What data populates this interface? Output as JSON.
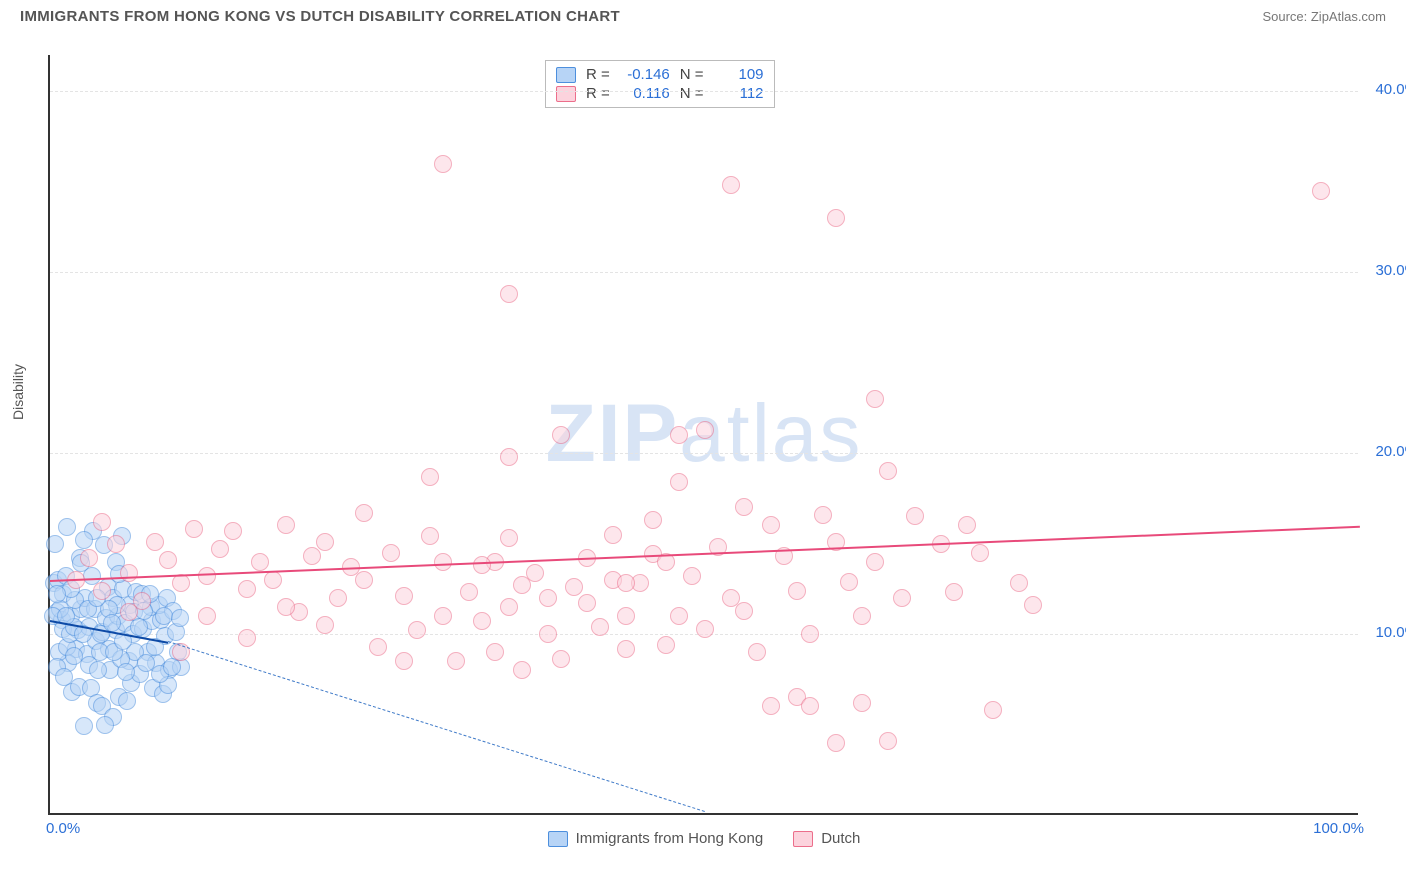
{
  "title": "IMMIGRANTS FROM HONG KONG VS DUTCH DISABILITY CORRELATION CHART",
  "source_prefix": "Source: ",
  "source_name": "ZipAtlas.com",
  "ylabel": "Disability",
  "watermark": "ZIPatlas",
  "chart": {
    "type": "scatter",
    "xlim": [
      0,
      100
    ],
    "ylim": [
      0,
      42
    ],
    "yticks": [
      10,
      20,
      30,
      40
    ],
    "ytick_labels": [
      "10.0%",
      "20.0%",
      "30.0%",
      "40.0%"
    ],
    "xtick_labels": {
      "left": "0.0%",
      "right": "100.0%"
    },
    "grid_color": "#e4e4e4",
    "axis_color": "#333333",
    "label_color": "#2b6fd6",
    "marker_radius": 9,
    "marker_border_width": 1.5,
    "trend_line_width": 2
  },
  "series": [
    {
      "name": "Immigrants from Hong Kong",
      "fill": "#b7d4f6",
      "stroke": "#4d8fdd",
      "fill_opacity": 0.55,
      "R": "-0.146",
      "N": "109",
      "trend": {
        "x1": 0,
        "y1": 10.8,
        "x2": 9,
        "y2": 9.6,
        "color": "#0d4aa6"
      },
      "trend_dashed": {
        "x1": 9,
        "y1": 9.6,
        "x2": 50,
        "y2": 0.2,
        "color": "#3f7ac8"
      },
      "points": [
        [
          0.3,
          12.8
        ],
        [
          0.6,
          13.0
        ],
        [
          0.5,
          11.2
        ],
        [
          1.0,
          12.2
        ],
        [
          0.9,
          10.8
        ],
        [
          1.2,
          13.2
        ],
        [
          1.6,
          11.0
        ],
        [
          2.1,
          10.2
        ],
        [
          2.4,
          11.4
        ],
        [
          2.0,
          9.2
        ],
        [
          3.0,
          10.4
        ],
        [
          2.7,
          12.0
        ],
        [
          1.4,
          8.4
        ],
        [
          2.8,
          8.9
        ],
        [
          3.5,
          9.6
        ],
        [
          3.4,
          11.4
        ],
        [
          4.0,
          10.1
        ],
        [
          4.3,
          10.9
        ],
        [
          4.5,
          9.2
        ],
        [
          5.0,
          10.2
        ],
        [
          5.2,
          11.0
        ],
        [
          5.7,
          10.6
        ],
        [
          6.3,
          10.0
        ],
        [
          6.0,
          8.5
        ],
        [
          1.7,
          6.8
        ],
        [
          2.2,
          7.1
        ],
        [
          3.1,
          7.0
        ],
        [
          3.6,
          6.2
        ],
        [
          4.0,
          6.0
        ],
        [
          4.8,
          5.4
        ],
        [
          2.6,
          4.9
        ],
        [
          5.3,
          6.5
        ],
        [
          5.9,
          6.3
        ],
        [
          6.2,
          7.3
        ],
        [
          6.9,
          7.8
        ],
        [
          7.1,
          10.3
        ],
        [
          7.5,
          9.0
        ],
        [
          7.8,
          10.7
        ],
        [
          8.1,
          8.4
        ],
        [
          8.5,
          10.8
        ],
        [
          8.8,
          9.9
        ],
        [
          9.1,
          8.0
        ],
        [
          9.6,
          10.1
        ],
        [
          10.0,
          8.2
        ],
        [
          3.3,
          15.7
        ],
        [
          4.1,
          14.9
        ],
        [
          5.0,
          14.0
        ],
        [
          0.7,
          9.0
        ],
        [
          0.5,
          8.2
        ],
        [
          1.1,
          7.6
        ],
        [
          1.9,
          11.9
        ],
        [
          3.2,
          13.2
        ],
        [
          4.4,
          12.6
        ],
        [
          4.8,
          12.0
        ],
        [
          5.6,
          12.5
        ],
        [
          6.1,
          11.6
        ],
        [
          6.6,
          12.3
        ],
        [
          6.5,
          9.0
        ],
        [
          7.0,
          12.2
        ],
        [
          7.3,
          8.4
        ],
        [
          7.7,
          11.5
        ],
        [
          7.9,
          7.0
        ],
        [
          8.3,
          11.6
        ],
        [
          8.6,
          6.7
        ],
        [
          8.9,
          12.0
        ],
        [
          9.0,
          7.2
        ],
        [
          9.4,
          11.3
        ],
        [
          9.8,
          9.0
        ],
        [
          1.3,
          15.9
        ],
        [
          0.4,
          15.0
        ],
        [
          2.3,
          14.2
        ],
        [
          2.6,
          15.2
        ],
        [
          1.0,
          10.3
        ],
        [
          1.3,
          9.3
        ],
        [
          1.5,
          10.0
        ],
        [
          1.8,
          10.4
        ],
        [
          3.8,
          9.0
        ],
        [
          3.9,
          10.0
        ],
        [
          4.6,
          8.0
        ],
        [
          5.4,
          8.6
        ],
        [
          5.8,
          7.9
        ],
        [
          4.2,
          5.0
        ],
        [
          5.1,
          11.6
        ],
        [
          6.4,
          11.2
        ],
        [
          6.8,
          10.4
        ],
        [
          2.5,
          10.0
        ],
        [
          3.0,
          8.3
        ],
        [
          0.8,
          11.4
        ],
        [
          0.2,
          11.0
        ],
        [
          1.6,
          12.5
        ],
        [
          2.9,
          11.4
        ],
        [
          5.5,
          15.4
        ],
        [
          3.7,
          8.0
        ],
        [
          4.5,
          11.4
        ],
        [
          4.9,
          9.0
        ],
        [
          5.6,
          9.6
        ],
        [
          7.2,
          11.3
        ],
        [
          7.6,
          12.2
        ],
        [
          8.0,
          9.3
        ],
        [
          8.4,
          7.8
        ],
        [
          8.7,
          11.0
        ],
        [
          9.3,
          8.2
        ],
        [
          9.9,
          10.9
        ],
        [
          0.5,
          12.2
        ],
        [
          1.2,
          11.0
        ],
        [
          1.8,
          8.8
        ],
        [
          2.4,
          13.9
        ],
        [
          3.6,
          12.0
        ],
        [
          4.7,
          10.6
        ],
        [
          5.3,
          13.3
        ]
      ]
    },
    {
      "name": "Dutch",
      "fill": "#fcd3dd",
      "stroke": "#ec6e8b",
      "fill_opacity": 0.55,
      "R": "0.116",
      "N": "112",
      "trend": {
        "x1": 0,
        "y1": 13.0,
        "x2": 100,
        "y2": 16.0,
        "color": "#e84a7a"
      },
      "points": [
        [
          2,
          13.0
        ],
        [
          3,
          14.2
        ],
        [
          4,
          12.4
        ],
        [
          5,
          15.0
        ],
        [
          6,
          13.4
        ],
        [
          7,
          11.8
        ],
        [
          9,
          14.1
        ],
        [
          10,
          12.8
        ],
        [
          11,
          15.8
        ],
        [
          12,
          13.2
        ],
        [
          13,
          14.7
        ],
        [
          14,
          15.7
        ],
        [
          15,
          12.5
        ],
        [
          16,
          14.0
        ],
        [
          17,
          13.0
        ],
        [
          18,
          16.0
        ],
        [
          19,
          11.2
        ],
        [
          20,
          14.3
        ],
        [
          21,
          15.1
        ],
        [
          22,
          12.0
        ],
        [
          23,
          13.7
        ],
        [
          24,
          13.0
        ],
        [
          25,
          9.3
        ],
        [
          26,
          14.5
        ],
        [
          27,
          12.1
        ],
        [
          28,
          10.2
        ],
        [
          29,
          15.4
        ],
        [
          30,
          14.0
        ],
        [
          31,
          8.5
        ],
        [
          32,
          12.3
        ],
        [
          33,
          10.7
        ],
        [
          29,
          18.7
        ],
        [
          34,
          14.0
        ],
        [
          35,
          11.5
        ],
        [
          36,
          12.7
        ],
        [
          37,
          13.4
        ],
        [
          38,
          10.0
        ],
        [
          39,
          21.0
        ],
        [
          40,
          12.6
        ],
        [
          30,
          36.0
        ],
        [
          41,
          14.2
        ],
        [
          42,
          10.4
        ],
        [
          35,
          28.8
        ],
        [
          43,
          13.0
        ],
        [
          44,
          11.0
        ],
        [
          45,
          12.8
        ],
        [
          46,
          14.4
        ],
        [
          47,
          9.4
        ],
        [
          48,
          11.0
        ],
        [
          49,
          13.2
        ],
        [
          50,
          21.3
        ],
        [
          51,
          14.8
        ],
        [
          52,
          12.0
        ],
        [
          53,
          11.3
        ],
        [
          54,
          9.0
        ],
        [
          55,
          16.0
        ],
        [
          56,
          14.3
        ],
        [
          57,
          12.4
        ],
        [
          58,
          10.0
        ],
        [
          59,
          16.6
        ],
        [
          60,
          15.1
        ],
        [
          35,
          19.8
        ],
        [
          61,
          12.9
        ],
        [
          62,
          11.0
        ],
        [
          63,
          14.0
        ],
        [
          64,
          19.0
        ],
        [
          65,
          12.0
        ],
        [
          66,
          16.5
        ],
        [
          68,
          15.0
        ],
        [
          52,
          34.8
        ],
        [
          60,
          33.0
        ],
        [
          69,
          12.3
        ],
        [
          70,
          16.0
        ],
        [
          71,
          14.5
        ],
        [
          72,
          5.8
        ],
        [
          74,
          12.8
        ],
        [
          75,
          11.6
        ],
        [
          57,
          6.5
        ],
        [
          58,
          6.0
        ],
        [
          63,
          23.0
        ],
        [
          60,
          4.0
        ],
        [
          39,
          8.6
        ],
        [
          43,
          15.5
        ],
        [
          44,
          9.2
        ],
        [
          46,
          16.3
        ],
        [
          48,
          18.4
        ],
        [
          50,
          10.3
        ],
        [
          53,
          17.0
        ],
        [
          55,
          6.0
        ],
        [
          62,
          6.2
        ],
        [
          64,
          4.1
        ],
        [
          97,
          34.5
        ],
        [
          15,
          9.8
        ],
        [
          18,
          11.5
        ],
        [
          21,
          10.5
        ],
        [
          24,
          16.7
        ],
        [
          27,
          8.5
        ],
        [
          30,
          11.0
        ],
        [
          33,
          13.8
        ],
        [
          35,
          15.3
        ],
        [
          38,
          12.0
        ],
        [
          41,
          11.7
        ],
        [
          44,
          12.8
        ],
        [
          47,
          14.0
        ],
        [
          48,
          21.0
        ],
        [
          8,
          15.1
        ],
        [
          10,
          9.0
        ],
        [
          12,
          11.0
        ],
        [
          4,
          16.2
        ],
        [
          6,
          11.2
        ],
        [
          34,
          9.0
        ],
        [
          36,
          8.0
        ]
      ]
    }
  ]
}
